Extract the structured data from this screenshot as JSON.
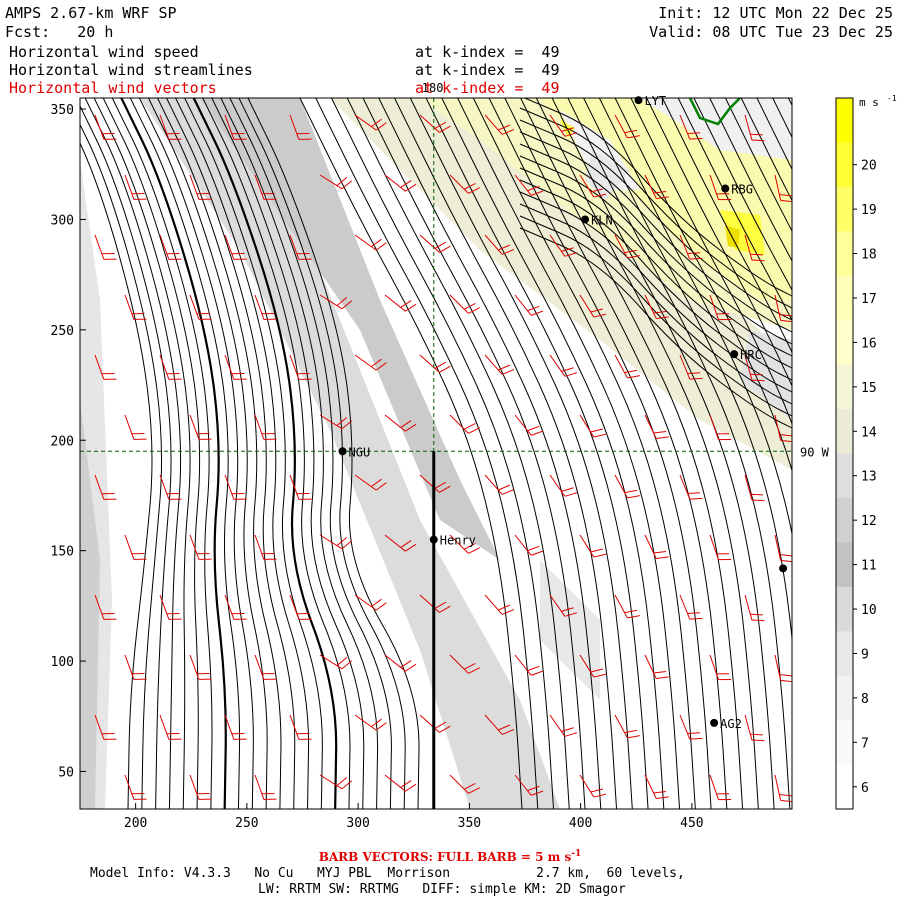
{
  "header": {
    "title_left": "AMPS 2.67-km WRF SP",
    "fcst_left": "Fcst:   20 h",
    "init_right": "Init: 12 UTC Mon 22 Dec 25",
    "valid_right": "Valid: 08 UTC Tue 23 Dec 25"
  },
  "fields": [
    {
      "name": "Horizontal wind speed",
      "level": "at k-index =  49",
      "color": "#000000"
    },
    {
      "name": "Horizontal wind streamlines",
      "level": "at k-index =  49",
      "color": "#000000"
    },
    {
      "name": "Horizontal wind vectors",
      "level": "at k-index =  49",
      "color": "#e00000"
    }
  ],
  "footer": {
    "barb_label": "BARB VECTORS:  FULL BARB = 5 m s",
    "barb_sup": "-1",
    "model_line": "Model Info: V4.3.3   No Cu   MYJ PBL  Morrison           2.7 km,  60 levels,",
    "physics_line": "LW: RRTM SW: RRTMG   DIFF: simple KM: 2D Smagor"
  },
  "colorbar": {
    "unit": "m s",
    "unit_sup": "-1",
    "labels": [
      "20",
      "19",
      "18",
      "17",
      "16",
      "15",
      "14",
      "13",
      "12",
      "11",
      "10",
      "9",
      "8",
      "7",
      "6"
    ],
    "colors": [
      "#ffff00",
      "#ffff33",
      "#ffff66",
      "#ffff99",
      "#ffffbb",
      "#ffffcc",
      "#f5f5d8",
      "#ebebd8",
      "#dedede",
      "#d0d0d0",
      "#c2c2c2",
      "#dadada",
      "#e8e8e8",
      "#f2f2f2",
      "#fafafa",
      "#ffffff"
    ]
  },
  "chart_data": {
    "type": "contour+streamlines+barbs",
    "title": "Horizontal wind speed / streamlines / vectors at k-index = 49",
    "xlabel": "",
    "ylabel": "",
    "xlim": [
      175,
      495
    ],
    "ylim": [
      33,
      355
    ],
    "xticks": [
      200,
      250,
      300,
      350,
      400,
      450
    ],
    "yticks": [
      50,
      100,
      150,
      200,
      250,
      300,
      350
    ],
    "speed_range": [
      5,
      21
    ],
    "speed_unit": "m s-1",
    "grid_lines": [
      {
        "label": "180",
        "x": 334
      },
      {
        "label": "90 W",
        "y": 195
      }
    ],
    "stations": [
      {
        "name": "LYT",
        "x": 426,
        "y": 354
      },
      {
        "name": "RBG",
        "x": 465,
        "y": 314
      },
      {
        "name": "KLN",
        "x": 402,
        "y": 300
      },
      {
        "name": "HRC",
        "x": 469,
        "y": 239
      },
      {
        "name": "NGU",
        "x": 293,
        "y": 195
      },
      {
        "name": "Henry",
        "x": 334,
        "y": 155
      },
      {
        "name": "AG2",
        "x": 460,
        "y": 72
      },
      {
        "name": "",
        "x": 491,
        "y": 142
      }
    ]
  }
}
